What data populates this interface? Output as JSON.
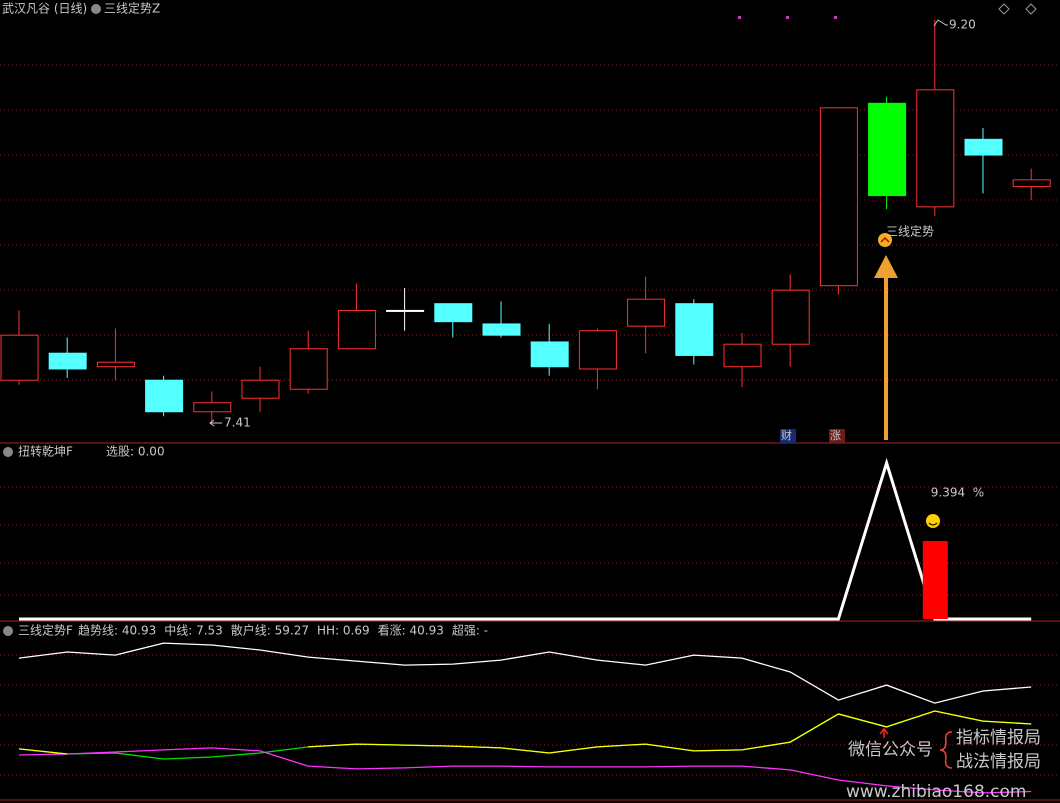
{
  "chart_data": [
    {
      "type": "candlestick",
      "title": "武汉凡谷 (日线)",
      "subtitle": "三线定势Z",
      "categories": [
        null,
        null,
        null,
        null,
        null,
        null,
        null,
        null,
        null,
        null,
        null,
        null,
        null,
        null,
        null,
        null,
        null,
        null,
        null,
        null,
        null,
        null
      ],
      "open": [
        7.6,
        7.72,
        7.66,
        7.6,
        7.46,
        7.52,
        7.56,
        7.74,
        7.91,
        7.94,
        7.85,
        7.77,
        7.65,
        7.84,
        7.94,
        7.66,
        7.76,
        8.02,
        8.83,
        8.37,
        8.67,
        8.46
      ],
      "high": [
        7.91,
        7.79,
        7.83,
        7.62,
        7.55,
        7.66,
        7.82,
        8.03,
        8.01,
        7.94,
        7.95,
        7.85,
        7.83,
        8.06,
        7.96,
        7.81,
        8.07,
        8.81,
        8.86,
        9.2,
        8.72,
        8.54
      ],
      "low": [
        7.58,
        7.61,
        7.6,
        7.44,
        7.41,
        7.46,
        7.54,
        7.74,
        7.82,
        7.79,
        7.79,
        7.62,
        7.56,
        7.72,
        7.67,
        7.57,
        7.66,
        7.98,
        8.36,
        8.33,
        8.43,
        8.4
      ],
      "close": [
        7.8,
        7.65,
        7.68,
        7.46,
        7.5,
        7.6,
        7.74,
        7.91,
        7.91,
        7.86,
        7.8,
        7.66,
        7.82,
        7.96,
        7.71,
        7.76,
        8.0,
        8.81,
        8.42,
        8.89,
        8.6,
        8.49
      ],
      "colors": [
        "#ff3232",
        "#54ffff",
        "#ff3232",
        "#54ffff",
        "#ff3232",
        "#ff3232",
        "#ff3232",
        "#ff3232",
        "#ffffff",
        "#54ffff",
        "#54ffff",
        "#54ffff",
        "#ff3232",
        "#ff3232",
        "#54ffff",
        "#ff3232",
        "#ff3232",
        "#ff3232",
        "#00ff00",
        "#ff3232",
        "#54ffff",
        "#ff3232"
      ],
      "ylim": [
        7.41,
        9.2
      ],
      "low_label": 7.41,
      "high_label": {
        "value": 9.2,
        "label": "9.20"
      },
      "signal_text": "三线定势",
      "markers": [
        "财",
        "涨"
      ]
    },
    {
      "type": "line",
      "title": "扭转乾坤F",
      "legend_text": "选股: 0.00",
      "ylim": [
        0,
        20
      ],
      "series": [
        {
          "color": "#ffffff",
          "values": [
            0,
            0,
            0,
            0,
            0,
            0,
            0,
            0,
            0,
            0,
            0,
            0,
            0,
            0,
            0,
            0,
            0,
            0,
            18.8,
            0,
            0,
            0
          ]
        },
        {
          "color": "#ff0000",
          "type": "bar",
          "values": [
            null,
            null,
            null,
            null,
            null,
            null,
            null,
            null,
            null,
            null,
            null,
            null,
            null,
            null,
            null,
            null,
            null,
            null,
            null,
            9.394,
            null,
            null
          ]
        }
      ],
      "value_text": "%"
    },
    {
      "type": "line",
      "title": "三线定势F",
      "ylim": [
        3.3,
        88.5
      ],
      "series": [
        {
          "name": "趋势线: 40.93",
          "color": "#00e000",
          "values": [
            28.6,
            26.1,
            26.6,
            23.6,
            24.6,
            26.6,
            29.6,
            31.0,
            30.5,
            30.0,
            29.1,
            26.6,
            29.6,
            31.0,
            27.6,
            28.1,
            32.0,
            45.9,
            39.5,
            47.4,
            42.4,
            40.93
          ]
        },
        {
          "name": "中线: 7.53",
          "color": "#ff33ff",
          "values": [
            25.6,
            26.1,
            27.1,
            28.1,
            29.1,
            27.6,
            20.1,
            18.7,
            19.2,
            20.1,
            20.1,
            19.7,
            19.7,
            19.7,
            20.1,
            20.1,
            18.2,
            13.2,
            10.3,
            8.3,
            6.8,
            7.53
          ]
        },
        {
          "name": "散户线: 59.27",
          "color": "#ffffff",
          "values": [
            73.6,
            76.6,
            75.1,
            81.0,
            80.1,
            77.6,
            74.1,
            72.1,
            70.1,
            70.6,
            72.6,
            76.6,
            72.6,
            70.1,
            75.1,
            73.6,
            66.7,
            52.8,
            60.2,
            51.3,
            57.3,
            59.27
          ]
        },
        {
          "name": "HH: 0.69",
          "color": "#e0e0e0",
          "values": []
        },
        {
          "name": "看涨: 40.93",
          "color": "#ffff00",
          "values": [
            28.6,
            26.1,
            null,
            null,
            null,
            null,
            29.6,
            31.0,
            30.5,
            30.0,
            29.1,
            26.6,
            29.6,
            31.0,
            27.6,
            28.1,
            32.0,
            45.9,
            39.5,
            47.4,
            42.4,
            40.93
          ]
        },
        {
          "name": "超强: -",
          "color": "#ff2020",
          "values": []
        }
      ],
      "watermark": {
        "wechat": "微信公众号",
        "line1": "指标情报局",
        "line2": "战法情报局",
        "site": "www.zhibiao168.com"
      }
    }
  ]
}
